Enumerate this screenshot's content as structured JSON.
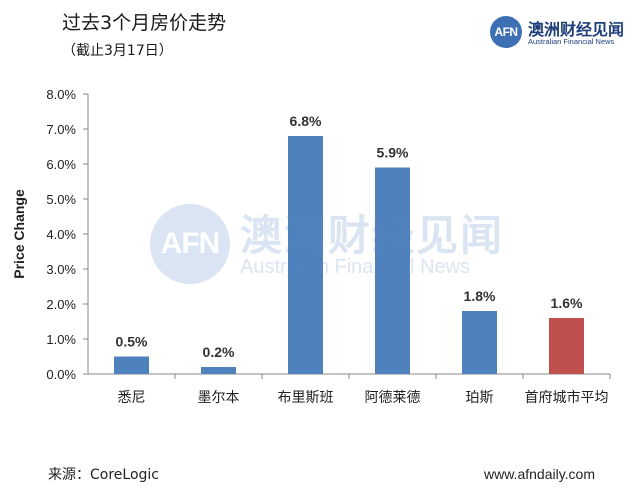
{
  "header": {
    "title": "过去3个月房价走势",
    "subtitle": "（截止3月17日）"
  },
  "logo": {
    "mark": "AFN",
    "name_cn": "澳洲财经见闻",
    "name_en": "Australian Financial News"
  },
  "watermark": {
    "mark": "AFN",
    "name_cn": "澳洲财经见闻",
    "name_en": "Australian Financial News"
  },
  "footer": {
    "source": "来源：CoreLogic",
    "site": "www.afndaily.com"
  },
  "chart_data": {
    "type": "bar",
    "title": "",
    "xlabel": "",
    "ylabel": "Price Change",
    "ylim": [
      0,
      8
    ],
    "yticks": [
      "0.0%",
      "1.0%",
      "2.0%",
      "3.0%",
      "4.0%",
      "5.0%",
      "6.0%",
      "7.0%",
      "8.0%"
    ],
    "categories": [
      "悉尼",
      "墨尔本",
      "布里斯班",
      "阿德莱德",
      "珀斯",
      "首府城市平均"
    ],
    "values": [
      0.5,
      0.2,
      6.8,
      5.9,
      1.8,
      1.6
    ],
    "value_labels": [
      "0.5%",
      "0.2%",
      "6.8%",
      "5.9%",
      "1.8%",
      "1.6%"
    ],
    "bar_colors": [
      "#4f81bd",
      "#4f81bd",
      "#4f81bd",
      "#4f81bd",
      "#4f81bd",
      "#c0504d"
    ],
    "grid": false,
    "legend": "none"
  }
}
